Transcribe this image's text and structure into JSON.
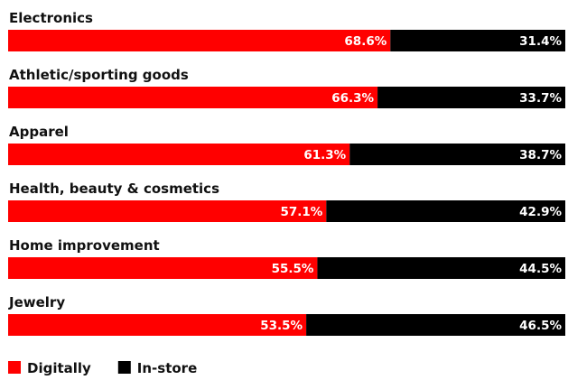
{
  "chart_data": {
    "type": "bar",
    "stacked": true,
    "orientation": "horizontal",
    "categories": [
      "Electronics",
      "Athletic/sporting goods",
      "Apparel",
      "Health, beauty & cosmetics",
      "Home improvement",
      "Jewelry"
    ],
    "series": [
      {
        "name": "Digitally",
        "color": "#ff0000",
        "values": [
          68.6,
          66.3,
          61.3,
          57.1,
          55.5,
          53.5
        ],
        "labels": [
          "68.6%",
          "66.3%",
          "61.3%",
          "57.1%",
          "55.5%",
          "53.5%"
        ]
      },
      {
        "name": "In-store",
        "color": "#000000",
        "values": [
          31.4,
          33.7,
          38.7,
          42.9,
          44.5,
          46.5
        ],
        "labels": [
          "31.4%",
          "33.7%",
          "38.7%",
          "42.9%",
          "44.5%",
          "46.5%"
        ]
      }
    ],
    "xlim": [
      0,
      100
    ],
    "grid": false,
    "legend": "bottom-left"
  }
}
